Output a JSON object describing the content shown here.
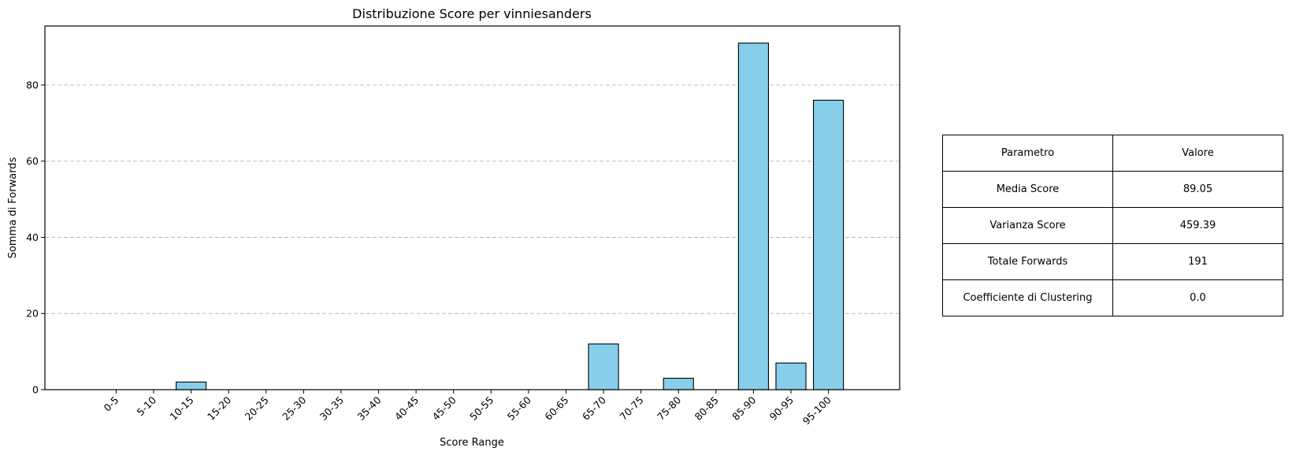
{
  "chart_data": {
    "type": "bar",
    "title": "Distribuzione Score per vinniesanders",
    "xlabel": "Score Range",
    "ylabel": "Somma di Forwards",
    "categories": [
      "0-5",
      "5-10",
      "10-15",
      "15-20",
      "20-25",
      "25-30",
      "30-35",
      "35-40",
      "40-45",
      "45-50",
      "50-55",
      "55-60",
      "60-65",
      "65-70",
      "70-75",
      "75-80",
      "80-85",
      "85-90",
      "90-95",
      "95-100"
    ],
    "values": [
      0,
      0,
      2,
      0,
      0,
      0,
      0,
      0,
      0,
      0,
      0,
      0,
      0,
      12,
      0,
      3,
      0,
      91,
      7,
      76
    ],
    "ylim": [
      0,
      95.5
    ],
    "yticks": [
      0,
      20,
      40,
      60,
      80
    ],
    "grid": "y dashed",
    "bar_color": "#87ceeb",
    "edge_color": "#000000"
  },
  "table": {
    "header": [
      "Parametro",
      "Valore"
    ],
    "rows": [
      [
        "Media Score",
        "89.05"
      ],
      [
        "Varianza Score",
        "459.39"
      ],
      [
        "Totale Forwards",
        "191"
      ],
      [
        "Coefficiente di Clustering",
        "0.0"
      ]
    ]
  }
}
